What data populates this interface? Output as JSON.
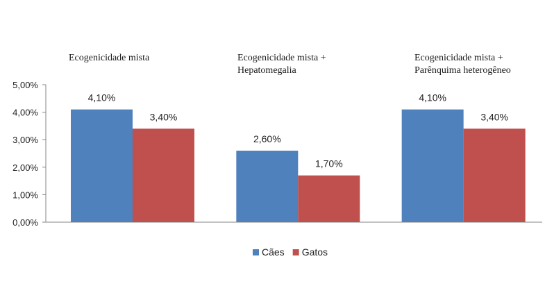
{
  "chart_data": {
    "type": "bar",
    "categories": [
      [
        "Ecogenicidade mista"
      ],
      [
        "Ecogenicidade mista +",
        "Hepatomegalia"
      ],
      [
        "Ecogenicidade mista +",
        "Parênquima heterogêneo"
      ]
    ],
    "series": [
      {
        "name": "Cães",
        "color": "#4f81bd",
        "values": [
          4.1,
          2.6,
          4.1
        ],
        "labels": [
          "4,10%",
          "2,60%",
          "4,10%"
        ]
      },
      {
        "name": "Gatos",
        "color": "#c0504d",
        "values": [
          3.4,
          1.7,
          3.4
        ],
        "labels": [
          "3,40%",
          "1,70%",
          "3,40%"
        ]
      }
    ],
    "yticks": [
      "0,00%",
      "1,00%",
      "2,00%",
      "3,00%",
      "4,00%",
      "5,00%"
    ],
    "ylim": [
      0,
      5
    ],
    "ylabel": "",
    "xlabel": "",
    "title": "",
    "grid": false,
    "legend_position": "bottom"
  }
}
